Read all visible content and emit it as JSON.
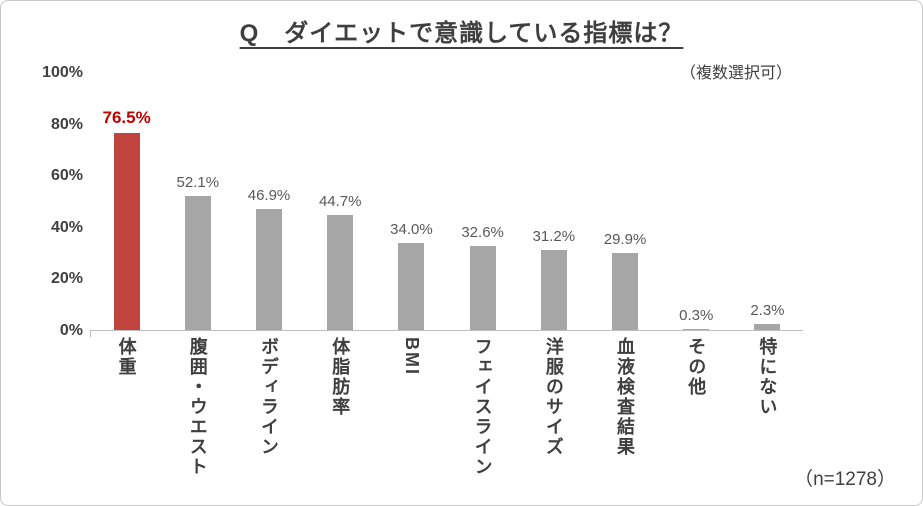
{
  "chart_data": {
    "type": "bar",
    "title": "Q　ダイエットで意識している指標は？",
    "subtitle": "（複数選択可）",
    "note": "（n=1278）",
    "categories": [
      "体重",
      "腹囲・ウエスト",
      "ボディライン",
      "体脂肪率",
      "BMI",
      "フェイスライン",
      "洋服のサイズ",
      "血液検査結果",
      "その他",
      "特にない"
    ],
    "values": [
      76.5,
      52.1,
      46.9,
      44.7,
      34.0,
      32.6,
      31.2,
      29.9,
      0.3,
      2.3
    ],
    "value_labels": [
      "76.5%",
      "52.1%",
      "46.9%",
      "44.7%",
      "34.0%",
      "32.6%",
      "31.2%",
      "29.9%",
      "0.3%",
      "2.3%"
    ],
    "ylim": [
      0,
      100
    ],
    "ytick_labels": [
      "100%",
      "80%",
      "60%",
      "40%",
      "20%",
      "0%"
    ],
    "ytick_values": [
      100,
      80,
      60,
      40,
      20,
      0
    ],
    "grid": "off",
    "legend": "none",
    "highlight_index": 0,
    "colors": {
      "bar": "#a6a6a6",
      "highlight_bar": "#c0433e",
      "value_label": "#595959",
      "highlight_value_label": "#c00000",
      "axis_line": "#bfbfbf",
      "text": "#3f3f3f"
    }
  }
}
